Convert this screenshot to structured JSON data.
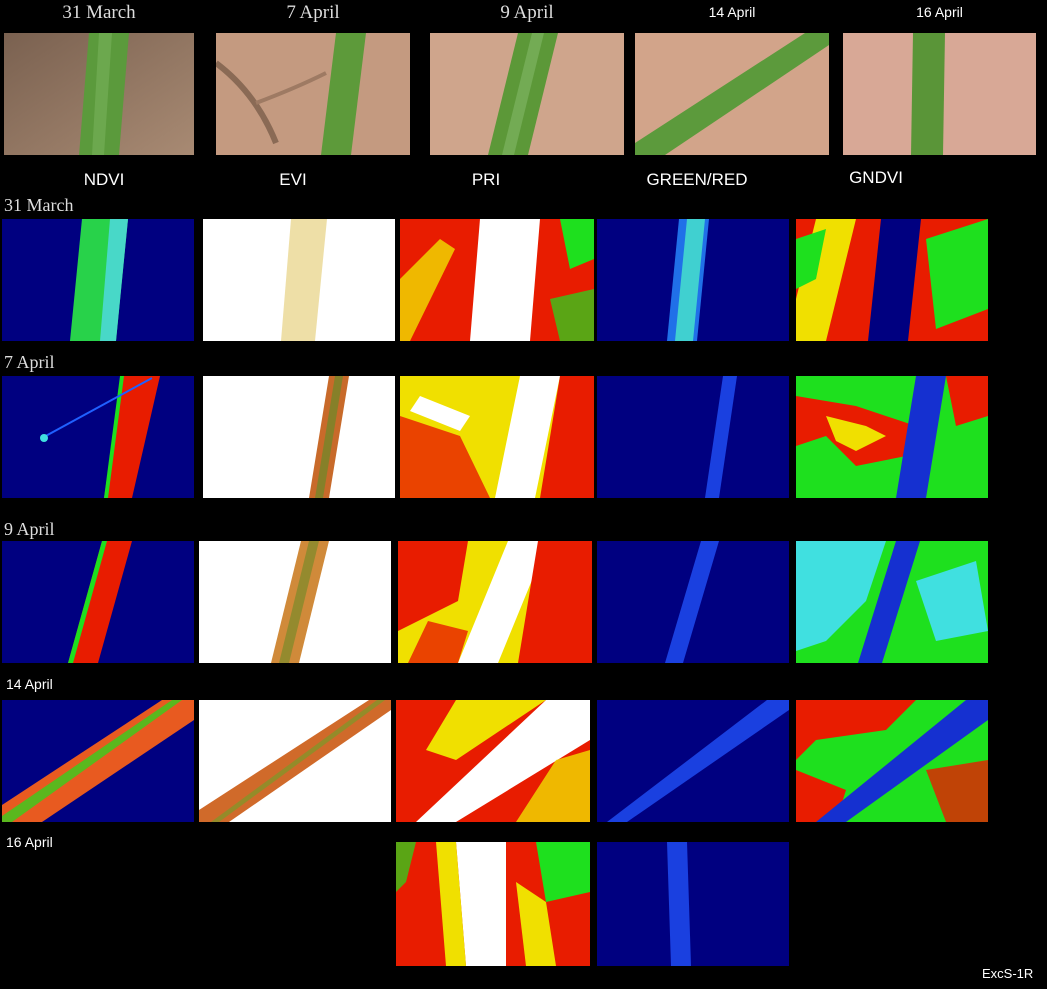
{
  "photo_dates": [
    "31 March",
    "7 April",
    "9 April",
    "14 April",
    "16 April"
  ],
  "index_titles": [
    "NDVI",
    "EVI",
    "PRI",
    "GREEN/RED",
    "GNDVI"
  ],
  "row_dates": [
    "31 March",
    "7 April",
    "9 April",
    "14 April",
    "16 April"
  ],
  "figure_code": "ExcS-1R",
  "colors": {
    "background": "#000000",
    "ndvi_bg": "#000080",
    "stem_green": "#5a9a3a",
    "skin": "#c9a089",
    "heat_red": "#e81c00",
    "heat_yellow": "#f0e000",
    "heat_green": "#1ee01e",
    "heat_cyan": "#40e0e0",
    "heat_blue": "#1530d0"
  }
}
